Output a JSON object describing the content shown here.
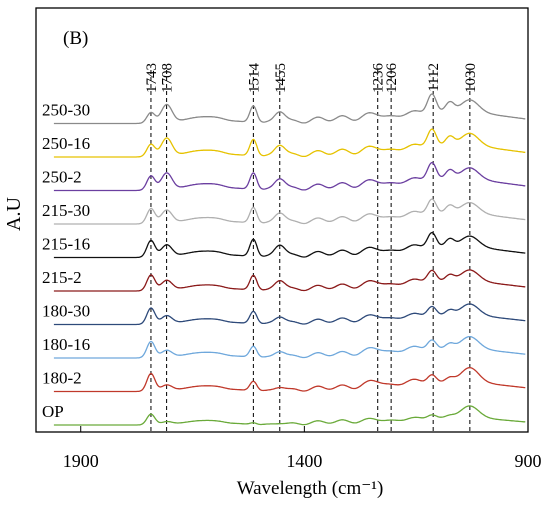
{
  "chart_data": {
    "type": "line",
    "panel_label": "(B)",
    "xlabel": "Wavelength (cm⁻¹)",
    "ylabel": "A.U",
    "x_reversed": true,
    "xlim": [
      2000,
      900
    ],
    "xticks": [
      1900,
      1400,
      900
    ],
    "peak_lines": [
      {
        "label": "1743",
        "x": 1743
      },
      {
        "label": "1708",
        "x": 1708
      },
      {
        "label": "1514",
        "x": 1514
      },
      {
        "label": "1455",
        "x": 1455
      },
      {
        "label": "1236",
        "x": 1236
      },
      {
        "label": "1206",
        "x": 1206
      },
      {
        "label": "1112",
        "x": 1112
      },
      {
        "label": "1030",
        "x": 1030
      }
    ],
    "series": [
      {
        "name": "OP",
        "color": "#6aaa3a",
        "offset": 0,
        "amp": 0.6,
        "weights": {
          "1743": 0.9,
          "1708": 0.3,
          "1514": 0.2,
          "1455": 0.2,
          "1236": 0.5,
          "1206": 0.6,
          "1112": 0.4,
          "1030": 1.8
        }
      },
      {
        "name": "180-2",
        "color": "#c0392b",
        "offset": 1,
        "amp": 0.75,
        "weights": {
          "1743": 1.2,
          "1708": 0.5,
          "1514": 0.7,
          "1455": 0.4,
          "1236": 0.9,
          "1206": 1.1,
          "1112": 0.7,
          "1030": 1.8
        }
      },
      {
        "name": "180-16",
        "color": "#6fa8dc",
        "offset": 2,
        "amp": 0.75,
        "weights": {
          "1743": 1.1,
          "1708": 0.6,
          "1514": 0.8,
          "1455": 0.6,
          "1236": 0.8,
          "1206": 1.0,
          "1112": 0.8,
          "1030": 1.5
        }
      },
      {
        "name": "180-30",
        "color": "#2e4a7a",
        "offset": 3,
        "amp": 0.75,
        "weights": {
          "1743": 1.1,
          "1708": 0.7,
          "1514": 0.9,
          "1455": 0.7,
          "1236": 0.7,
          "1206": 0.9,
          "1112": 0.8,
          "1030": 1.4
        }
      },
      {
        "name": "215-2",
        "color": "#8b1a1a",
        "offset": 4,
        "amp": 0.8,
        "weights": {
          "1743": 1.0,
          "1708": 0.8,
          "1514": 1.0,
          "1455": 0.9,
          "1236": 0.7,
          "1206": 0.9,
          "1112": 0.9,
          "1030": 1.3
        }
      },
      {
        "name": "215-16",
        "color": "#111111",
        "offset": 5,
        "amp": 0.85,
        "weights": {
          "1743": 1.0,
          "1708": 0.9,
          "1514": 1.1,
          "1455": 1.0,
          "1236": 0.6,
          "1206": 0.9,
          "1112": 1.1,
          "1030": 1.2
        }
      },
      {
        "name": "215-30",
        "color": "#b0b0b0",
        "offset": 6,
        "amp": 0.85,
        "weights": {
          "1743": 0.9,
          "1708": 1.0,
          "1514": 1.0,
          "1455": 0.9,
          "1236": 0.6,
          "1206": 0.9,
          "1112": 1.1,
          "1030": 1.2
        }
      },
      {
        "name": "250-2",
        "color": "#6b3fa0",
        "offset": 7,
        "amp": 0.9,
        "weights": {
          "1743": 0.8,
          "1708": 1.2,
          "1514": 1.0,
          "1455": 0.9,
          "1236": 0.6,
          "1206": 0.8,
          "1112": 1.2,
          "1030": 1.2
        }
      },
      {
        "name": "250-16",
        "color": "#e6c200",
        "offset": 8,
        "amp": 0.9,
        "weights": {
          "1743": 0.7,
          "1708": 1.3,
          "1514": 1.0,
          "1455": 0.9,
          "1236": 0.6,
          "1206": 0.8,
          "1112": 1.2,
          "1030": 1.3
        }
      },
      {
        "name": "250-30",
        "color": "#8a8a8a",
        "offset": 9,
        "amp": 0.9,
        "weights": {
          "1743": 0.6,
          "1708": 1.3,
          "1514": 1.0,
          "1455": 0.9,
          "1236": 0.6,
          "1206": 0.8,
          "1112": 1.3,
          "1030": 1.3
        }
      }
    ],
    "grid": false,
    "legend": "labels at left of each trace"
  }
}
